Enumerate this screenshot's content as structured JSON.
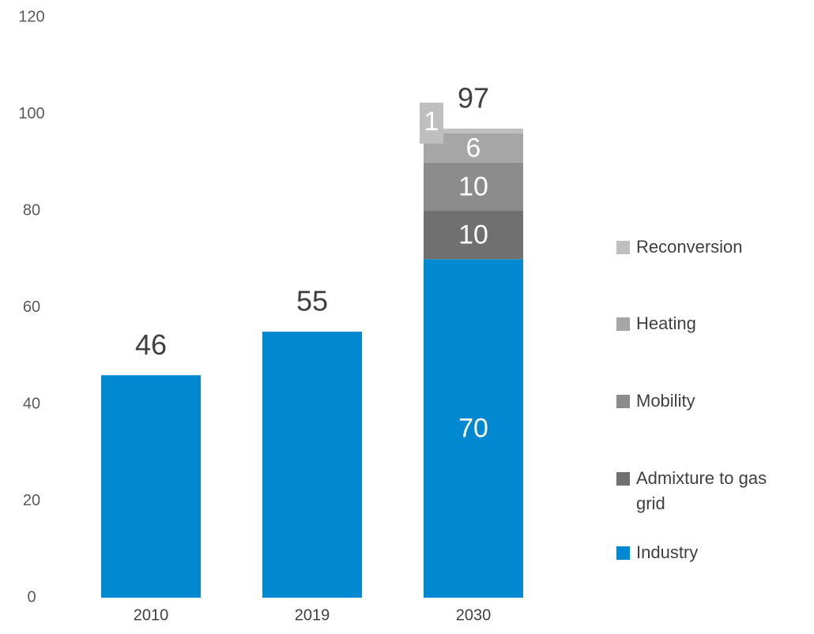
{
  "chart_data": {
    "type": "stacked-bar",
    "categories": [
      "2010",
      "2019",
      "2030"
    ],
    "series": [
      {
        "name": "Industry",
        "color": "#0088d1",
        "values": [
          46,
          55,
          70
        ],
        "value_labels": [
          null,
          null,
          "70"
        ]
      },
      {
        "name": "Admixture to gas grid",
        "color": "#707070",
        "values": [
          null,
          null,
          10
        ]
      },
      {
        "name": "Mobility",
        "color": "#8c8c8c",
        "values": [
          null,
          null,
          10
        ]
      },
      {
        "name": "Heating",
        "color": "#a6a6a6",
        "values": [
          null,
          null,
          6
        ]
      },
      {
        "name": "Reconversion",
        "color": "#bfbfbf",
        "values": [
          null,
          null,
          1
        ]
      }
    ],
    "totals": [
      46,
      55,
      97
    ],
    "ylim": [
      0,
      120
    ],
    "yticks": [
      0,
      20,
      40,
      60,
      80,
      100,
      120
    ],
    "grid": false,
    "legend": "right"
  }
}
